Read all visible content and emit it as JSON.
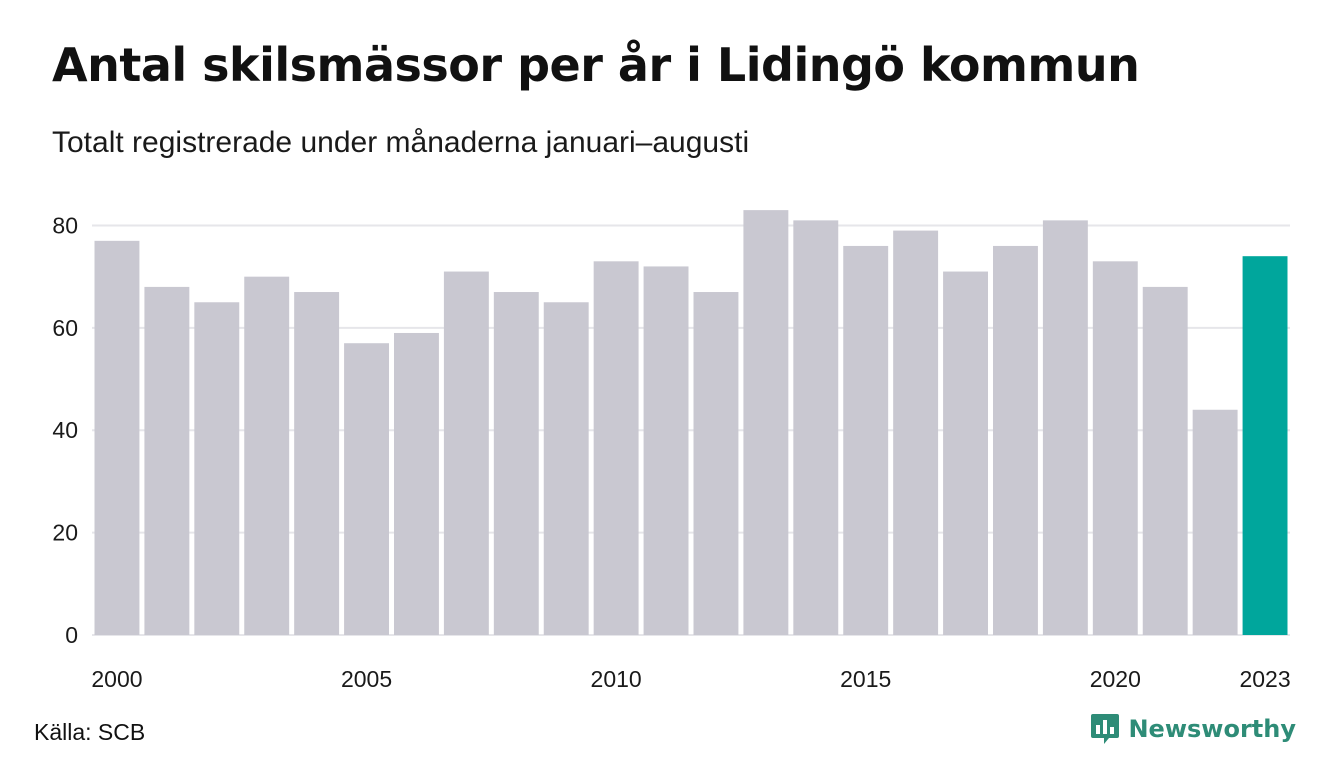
{
  "chart_data": {
    "type": "bar",
    "title": "Antal skilsmässor per år i Lidingö kommun",
    "subtitle": "Totalt registrerade under månaderna januari–augusti",
    "categories": [
      "2000",
      "2001",
      "2002",
      "2003",
      "2004",
      "2005",
      "2006",
      "2007",
      "2008",
      "2009",
      "2010",
      "2011",
      "2012",
      "2013",
      "2014",
      "2015",
      "2016",
      "2017",
      "2018",
      "2019",
      "2020",
      "2021",
      "2022",
      "2023"
    ],
    "values": [
      77,
      68,
      65,
      70,
      67,
      57,
      59,
      71,
      67,
      65,
      73,
      72,
      67,
      83,
      81,
      76,
      79,
      71,
      76,
      81,
      73,
      68,
      44,
      74
    ],
    "x_tick_labels": [
      "2000",
      "2005",
      "2010",
      "2015",
      "2020",
      "2023"
    ],
    "y_ticks": [
      0,
      20,
      40,
      60,
      80
    ],
    "ylim": [
      0,
      84
    ],
    "grid": "horizontal",
    "colors": {
      "bar": "#c9c8d1",
      "highlight": "#00a69c",
      "grid": "#e6e6ea"
    },
    "highlight_category": "2023"
  },
  "footer": {
    "source": "Källa: SCB",
    "brand": "Newsworthy",
    "brand_icon": "newsworthy-logo-icon",
    "brand_color": "#2e8c77"
  }
}
